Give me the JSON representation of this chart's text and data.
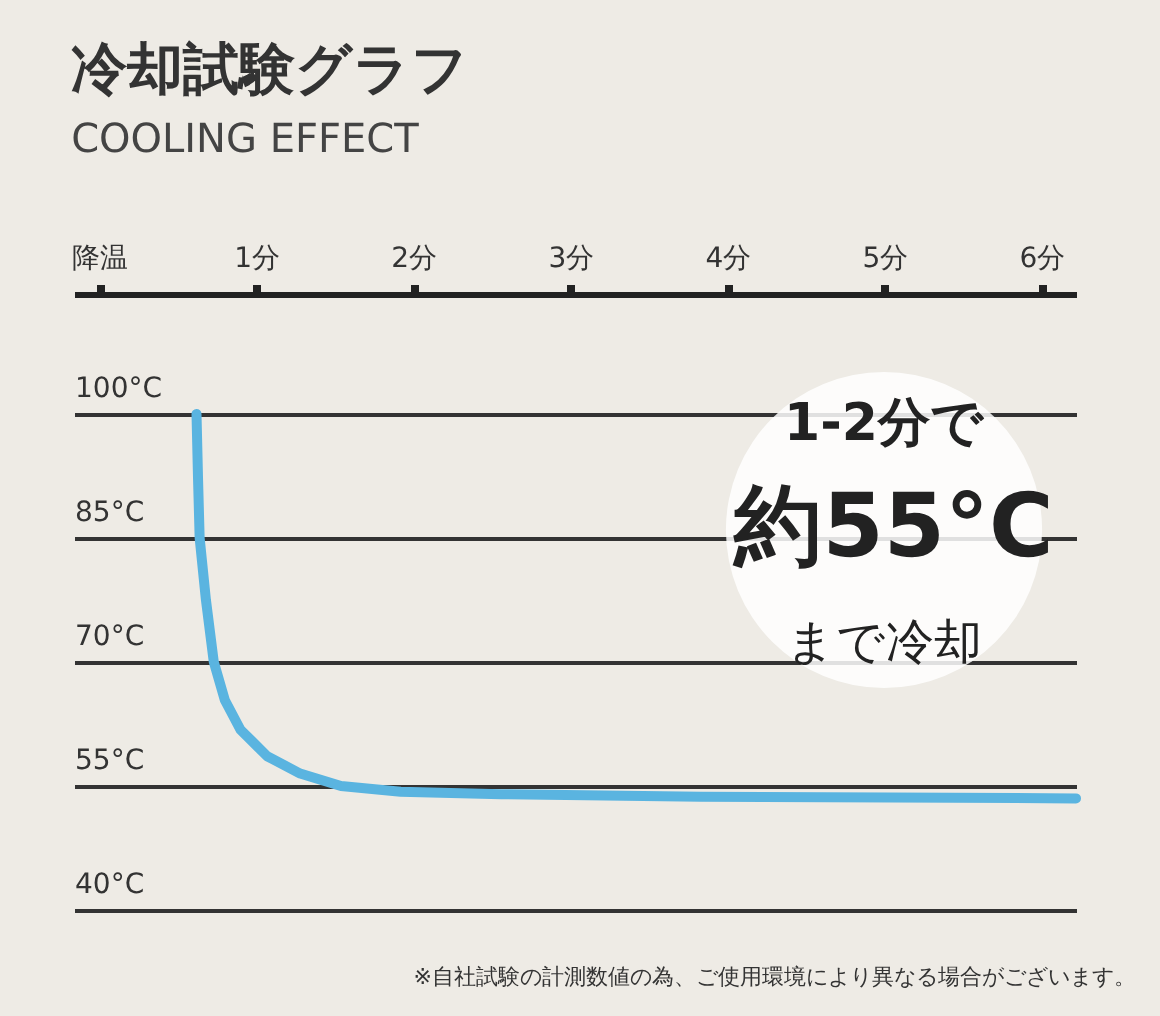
{
  "chart_data": {
    "type": "line",
    "title": "冷却試験グラフ",
    "subtitle": "COOLING EFFECT",
    "x": [
      0.62,
      0.63,
      0.64,
      0.68,
      0.73,
      0.8,
      0.9,
      1.07,
      1.28,
      1.54,
      1.92,
      2.56,
      3.83,
      6.22
    ],
    "series": [
      {
        "color": "#5ab4e0",
        "values": [
          100,
          92,
          85,
          77.5,
          70,
          65.4,
          61.8,
          58.6,
          56.5,
          55,
          54.3,
          54,
          53.7,
          53.5
        ]
      }
    ],
    "xlim": [
      -0.16,
      6.22
    ],
    "xticks": [
      {
        "value": 0,
        "label": "降温"
      },
      {
        "value": 1,
        "label": "1分"
      },
      {
        "value": 2,
        "label": "2分"
      },
      {
        "value": 3,
        "label": "3分"
      },
      {
        "value": 4,
        "label": "4分"
      },
      {
        "value": 5,
        "label": "5分"
      },
      {
        "value": 6,
        "label": "6分"
      }
    ],
    "ylim": [
      40,
      114.5
    ],
    "yticks": [
      {
        "value": 40,
        "label": "40°C"
      },
      {
        "value": 55,
        "label": "55°C"
      },
      {
        "value": 70,
        "label": "70°C"
      },
      {
        "value": 85,
        "label": "85°C"
      },
      {
        "value": 100,
        "label": "100°C"
      }
    ],
    "grid": "y",
    "marker": "none",
    "line_style": "solid",
    "annotations": [
      "1-2分で",
      "約55°C",
      "まで冷却",
      "※自社試験の計測数値の為、ご使用環境により異なる場合がございます。"
    ]
  }
}
